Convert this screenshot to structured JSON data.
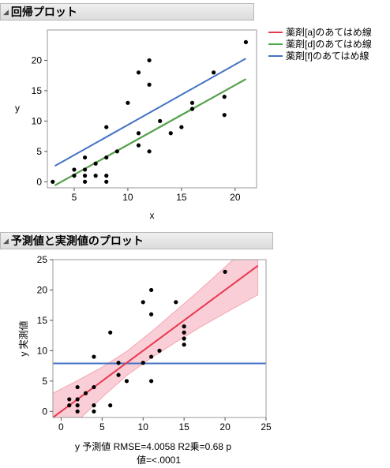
{
  "panels": {
    "regression_title": "回帰プロット",
    "pred_actual_title": "予測値と実測値のプロット"
  },
  "chart_data": [
    {
      "type": "scatter",
      "title": "回帰プロット",
      "xlabel": "x",
      "ylabel": "y",
      "xlim": [
        2.5,
        22
      ],
      "ylim": [
        -1,
        25
      ],
      "xticks": [
        5,
        10,
        15,
        20
      ],
      "yticks": [
        0,
        5,
        10,
        15,
        20
      ],
      "points": [
        [
          3,
          0
        ],
        [
          5,
          1
        ],
        [
          5,
          2
        ],
        [
          6,
          0
        ],
        [
          6,
          1
        ],
        [
          6,
          2
        ],
        [
          6,
          4
        ],
        [
          7,
          1
        ],
        [
          7,
          3
        ],
        [
          8,
          0
        ],
        [
          8,
          1
        ],
        [
          8,
          4
        ],
        [
          8,
          9
        ],
        [
          9,
          5
        ],
        [
          10,
          13
        ],
        [
          11,
          6
        ],
        [
          11,
          8
        ],
        [
          11,
          18
        ],
        [
          12,
          5
        ],
        [
          12,
          16
        ],
        [
          12,
          20
        ],
        [
          13,
          10
        ],
        [
          14,
          8
        ],
        [
          15,
          9
        ],
        [
          16,
          12
        ],
        [
          16,
          13
        ],
        [
          18,
          18
        ],
        [
          19,
          11
        ],
        [
          19,
          14
        ],
        [
          21,
          23
        ]
      ],
      "legend": {
        "position": "top-right",
        "entries": [
          {
            "label": "薬剤[a]のあてはめ線",
            "color": "#e8384f"
          },
          {
            "label": "薬剤[d]のあてはめ線",
            "color": "#4aa84a"
          },
          {
            "label": "薬剤[f]のあてはめ線",
            "color": "#4472c4"
          }
        ]
      },
      "fit_lines": [
        {
          "name": "薬剤[a]のあてはめ線",
          "color": "#e8384f",
          "x": [
            3.2,
            21
          ],
          "y": [
            -0.6,
            16.9
          ]
        },
        {
          "name": "薬剤[d]のあてはめ線",
          "color": "#4aa84a",
          "x": [
            3.2,
            21
          ],
          "y": [
            -0.6,
            16.9
          ]
        },
        {
          "name": "薬剤[f]のあてはめ線",
          "color": "#4472c4",
          "x": [
            3.2,
            21
          ],
          "y": [
            2.6,
            20.3
          ]
        }
      ]
    },
    {
      "type": "scatter",
      "title": "予測値と実測値のプロット",
      "xlabel": "y 予測値 RMSE=4.0058  R2乗=0.68 p",
      "xlabel_line2": "値=<.0001",
      "ylabel": "y 実測値",
      "xlim": [
        -1,
        25
      ],
      "ylim": [
        -1,
        25
      ],
      "xticks": [
        0,
        5,
        10,
        15,
        20,
        25
      ],
      "yticks": [
        0,
        5,
        10,
        15,
        20,
        25
      ],
      "points": [
        [
          1,
          1
        ],
        [
          1,
          2
        ],
        [
          2,
          0
        ],
        [
          2,
          1
        ],
        [
          2,
          2
        ],
        [
          2,
          4
        ],
        [
          3,
          3
        ],
        [
          4,
          0
        ],
        [
          4,
          1
        ],
        [
          4,
          4
        ],
        [
          4,
          9
        ],
        [
          6,
          1
        ],
        [
          6,
          13
        ],
        [
          7,
          6
        ],
        [
          7,
          8
        ],
        [
          8,
          5
        ],
        [
          10,
          8
        ],
        [
          10,
          18
        ],
        [
          11,
          9
        ],
        [
          11,
          16
        ],
        [
          11,
          20
        ],
        [
          11,
          5
        ],
        [
          12,
          10
        ],
        [
          14,
          18
        ],
        [
          15,
          11
        ],
        [
          15,
          14
        ],
        [
          15,
          12
        ],
        [
          15,
          13
        ],
        [
          20,
          23
        ]
      ],
      "mean_line": {
        "y": 7.9,
        "color": "#4472c4"
      },
      "fit_line": {
        "color": "#e8384f",
        "x": [
          -1,
          24
        ],
        "y": [
          -1,
          24
        ]
      },
      "confidence_band": {
        "color": "#f4a6b4",
        "x": [
          -1,
          2,
          5,
          8,
          11,
          14,
          17,
          20,
          24
        ],
        "lower": [
          -5.5,
          -1.6,
          2.3,
          5.9,
          8.8,
          11.4,
          13.9,
          16.2,
          19.2
        ],
        "upper": [
          3.0,
          5.1,
          7.3,
          9.9,
          13.1,
          16.6,
          20.1,
          23.8,
          28.8
        ]
      }
    }
  ]
}
